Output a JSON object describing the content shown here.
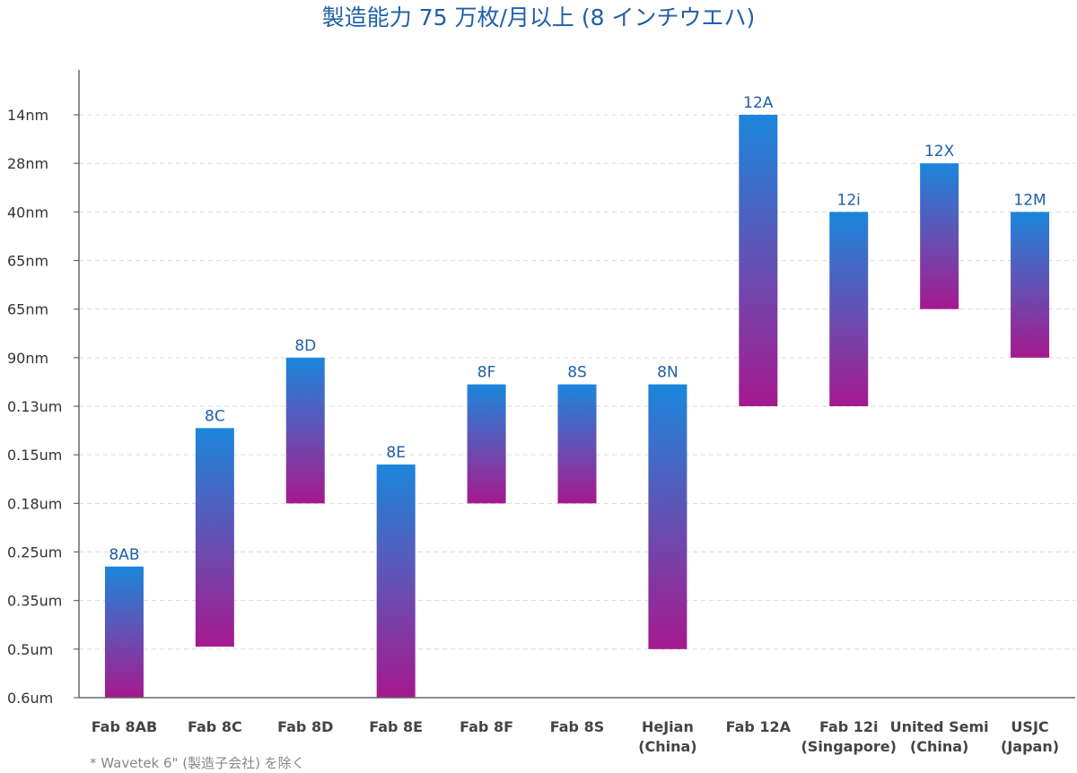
{
  "chart_data": {
    "type": "bar",
    "subtype": "floating-range",
    "title": "製造能力 75 万枚/月以上 (8 インチウエハ)",
    "footnote": "* Wavetek 6\" (製造子会社) を除く",
    "y_ticks": [
      "14nm",
      "28nm",
      "40nm",
      "65nm",
      "65nm",
      "90nm",
      "0.13um",
      "0.15um",
      "0.18um",
      "0.25um",
      "0.35um",
      "0.5um",
      "0.6um"
    ],
    "categories": [
      [
        "Fab 8AB"
      ],
      [
        "Fab 8C"
      ],
      [
        "Fab 8D"
      ],
      [
        "Fab 8E"
      ],
      [
        "Fab 8F"
      ],
      [
        "Fab 8S"
      ],
      [
        "HeJian",
        "(China)"
      ],
      [
        "Fab 12A"
      ],
      [
        "Fab 12i",
        "(Singapore)"
      ],
      [
        "United Semi",
        "(China)"
      ],
      [
        "USJC",
        "(Japan)"
      ]
    ],
    "series": [
      {
        "name": "process-range",
        "bars": [
          {
            "label": "8AB",
            "from": 9.3,
            "to": 12
          },
          {
            "label": "8C",
            "from": 6.45,
            "to": 10.95
          },
          {
            "label": "8D",
            "from": 5,
            "to": 8
          },
          {
            "label": "8E",
            "from": 7.2,
            "to": 12
          },
          {
            "label": "8F",
            "from": 5.55,
            "to": 8
          },
          {
            "label": "8S",
            "from": 5.55,
            "to": 8
          },
          {
            "label": "8N",
            "from": 5.55,
            "to": 11
          },
          {
            "label": "12A",
            "from": 0,
            "to": 6
          },
          {
            "label": "12i",
            "from": 2,
            "to": 6
          },
          {
            "label": "12X",
            "from": 1,
            "to": 4
          },
          {
            "label": "12M",
            "from": 2,
            "to": 5
          }
        ]
      }
    ],
    "colors": {
      "bar_top": "#1b86dc",
      "bar_mid": "#6a4cb0",
      "bar_bottom": "#a5198e",
      "title": "#1f5fa8",
      "data_label": "#1f5fa8",
      "grid": "#d9d9d9",
      "axis": "#666666",
      "tick_text": "#333333",
      "category_text": "#444444",
      "footnote": "#888888"
    }
  }
}
